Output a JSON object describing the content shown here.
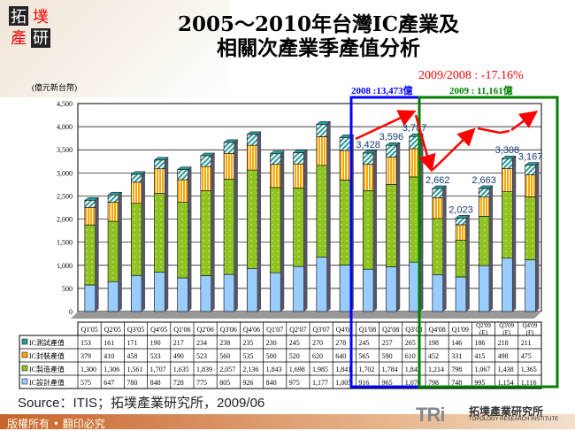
{
  "logo_text": "拓墣產研",
  "title_line1": "2005～2010年台灣IC產業及",
  "title_line2": "相關次產業季產值分析",
  "annotations": {
    "yoy": "2009/2008 : -17.16%",
    "y2008": "2008 :13,473億",
    "y2009": "2009 : 11,161億"
  },
  "colors": {
    "test": "#2e9a9a",
    "packaging": "#ffa500",
    "manufacturing": "#8fc31f",
    "design": "#99ccff",
    "box2008": "#0000ff",
    "box2009": "#008000",
    "trend": "#ff0000"
  },
  "chart_data": {
    "type": "bar",
    "stacked": true,
    "ylabel": "(億元新台幣)",
    "ylim": [
      0,
      4500
    ],
    "yticks": [
      "0",
      "500",
      "1,000",
      "1,500",
      "2,000",
      "2,500",
      "3,000",
      "3,500",
      "4,000",
      "4,500"
    ],
    "grid": true,
    "categories": [
      "Q1'05",
      "Q2'05",
      "Q3'05",
      "Q4'05",
      "Q1'06",
      "Q2'06",
      "Q3'06",
      "Q4'06",
      "Q1'07",
      "Q2'07",
      "Q3'07",
      "Q4'07",
      "Q1'08",
      "Q2'08",
      "Q3'08",
      "Q4'08",
      "Q1'09",
      "Q2'09 (E)",
      "Q3'09 (F)",
      "Q4'09 (F)"
    ],
    "series": [
      {
        "name": "IC測試產值",
        "key": "test",
        "values": [
          153,
          161,
          171,
          190,
          217,
          234,
          238,
          235,
          230,
          245,
          270,
          278,
          245,
          257,
          265,
          198,
          146,
          186,
          218,
          211
        ],
        "labels": [
          "153",
          "161",
          "171",
          "190",
          "217",
          "234",
          "238",
          "235",
          "230",
          "245",
          "270",
          "278",
          "245",
          "257",
          "265",
          "198",
          "146",
          "186",
          "218",
          "211"
        ]
      },
      {
        "name": "IC封裝產值",
        "key": "packaging",
        "values": [
          379,
          410,
          458,
          533,
          490,
          523,
          560,
          535,
          500,
          520,
          620,
          640,
          565,
          590,
          610,
          452,
          331,
          415,
          498,
          475
        ],
        "labels": [
          "379",
          "410",
          "458",
          "533",
          "490",
          "523",
          "560",
          "535",
          "500",
          "520",
          "620",
          "640",
          "565",
          "590",
          "610",
          "452",
          "331",
          "415",
          "498",
          "475"
        ]
      },
      {
        "name": "IC製造產值",
        "key": "manufacturing",
        "values": [
          1300,
          1306,
          1561,
          1707,
          1635,
          1839,
          2057,
          2136,
          1843,
          1698,
          1985,
          1841,
          1702,
          1784,
          1842,
          1214,
          798,
          1067,
          1438,
          1365
        ],
        "labels": [
          "1,300",
          "1,306",
          "1,561",
          "1,707",
          "1,635",
          "1,839",
          "2,057",
          "2,136",
          "1,843",
          "1,698",
          "1,985",
          "1,841",
          "1,702",
          "1,784",
          "1,842",
          "1,214",
          "798",
          "1,067",
          "1,438",
          "1,365"
        ]
      },
      {
        "name": "IC設計產值",
        "key": "design",
        "values": [
          575,
          647,
          780,
          848,
          728,
          775,
          805,
          926,
          840,
          975,
          1177,
          1005,
          916,
          965,
          1070,
          798,
          748,
          995,
          1154,
          1116
        ],
        "labels": [
          "575",
          "647",
          "780",
          "848",
          "728",
          "775",
          "805",
          "926",
          "840",
          "975",
          "1,177",
          "1,005",
          "916",
          "965",
          "1,070",
          "798",
          "748",
          "995",
          "1,154",
          "1,116"
        ]
      }
    ],
    "total_labels": [
      null,
      null,
      null,
      null,
      null,
      null,
      null,
      null,
      null,
      null,
      null,
      null,
      "3,428",
      "3,596",
      "3,787",
      "2,662",
      "2,023",
      "2,663",
      "3,308",
      "3,167"
    ]
  },
  "source": "Source：ITIS；拓墣產業研究所，2009/06",
  "footer": {
    "copyright": "版權所有 • 翻印必究",
    "brand_cn": "拓墣產業研究所",
    "brand_en": "TOPOLOGY RESEARCH INSTITUTE",
    "brand_mark": "TRi"
  }
}
